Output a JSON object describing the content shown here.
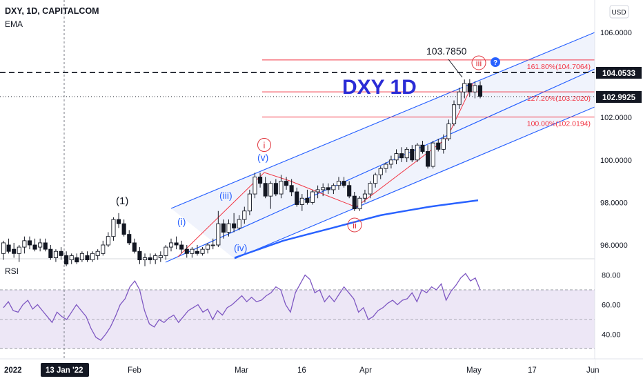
{
  "header": {
    "symbol_line": "DXY, 1D, CAPITALCOM",
    "indicator": "EMA",
    "currency": "USD"
  },
  "rsi_pane": {
    "label": "RSI",
    "ticks": [
      "80.00",
      "60.00",
      "40.00"
    ]
  },
  "price_axis": {
    "ticks": [
      "106.0000",
      "104.0000",
      "102.0000",
      "100.0000",
      "98.0000",
      "96.0000"
    ]
  },
  "price_badges": {
    "dashed_level": "104.0533",
    "last_price": "102.9925"
  },
  "time_axis": {
    "labels": [
      "2022",
      "13 Jan '22",
      "Feb",
      "Mar",
      "16",
      "Apr",
      "May",
      "17",
      "Jun"
    ]
  },
  "annotations": {
    "watermark": "DXY 1D",
    "peak_label": "103.7850",
    "wave_1": "(1)",
    "wave_i_blue": "(i)",
    "wave_iii_blue": "(iii)",
    "wave_iv_blue": "(iv)",
    "wave_v_blue": "(v)",
    "wave_i_red": "i",
    "wave_ii_red": "ii",
    "wave_iii_red": "iii",
    "help_glyph": "?"
  },
  "fib_levels": [
    {
      "label": "161.80%(104.7064)",
      "value": 104.7064
    },
    {
      "label": "127.20%(103.2020)",
      "value": 103.202
    },
    {
      "label": "100.00%(102.0194)",
      "value": 102.0194
    }
  ],
  "colors": {
    "up": "#ffffff",
    "down": "#131722",
    "ema": "#2962ff",
    "channel": "#2962ff",
    "fib": "#f23645",
    "rsi": "#7e57c2",
    "wave_red": "#e0353d",
    "wave_blue": "#2962ff"
  },
  "chart_data": {
    "type": "candlestick",
    "title": "DXY, 1D, CAPITALCOM",
    "ylim": [
      95.0,
      107.0
    ],
    "candles": [
      {
        "o": 95.6,
        "h": 96.2,
        "l": 95.3,
        "c": 96.1
      },
      {
        "o": 96.0,
        "h": 96.3,
        "l": 95.6,
        "c": 95.7
      },
      {
        "o": 95.8,
        "h": 96.1,
        "l": 95.4,
        "c": 95.6
      },
      {
        "o": 95.6,
        "h": 96.0,
        "l": 95.2,
        "c": 95.9
      },
      {
        "o": 95.9,
        "h": 96.4,
        "l": 95.6,
        "c": 96.2
      },
      {
        "o": 96.2,
        "h": 96.4,
        "l": 95.8,
        "c": 96.0
      },
      {
        "o": 96.0,
        "h": 96.3,
        "l": 95.7,
        "c": 95.8
      },
      {
        "o": 95.9,
        "h": 96.3,
        "l": 95.7,
        "c": 96.1
      },
      {
        "o": 96.1,
        "h": 96.3,
        "l": 95.7,
        "c": 95.8
      },
      {
        "o": 95.8,
        "h": 96.0,
        "l": 95.3,
        "c": 95.4
      },
      {
        "o": 95.4,
        "h": 95.8,
        "l": 95.2,
        "c": 95.7
      },
      {
        "o": 95.7,
        "h": 95.9,
        "l": 95.3,
        "c": 95.5
      },
      {
        "o": 95.5,
        "h": 95.7,
        "l": 95.0,
        "c": 95.1
      },
      {
        "o": 95.3,
        "h": 95.6,
        "l": 95.1,
        "c": 95.5
      },
      {
        "o": 95.4,
        "h": 95.6,
        "l": 95.1,
        "c": 95.2
      },
      {
        "o": 95.3,
        "h": 95.7,
        "l": 95.2,
        "c": 95.6
      },
      {
        "o": 95.5,
        "h": 95.7,
        "l": 95.2,
        "c": 95.3
      },
      {
        "o": 95.3,
        "h": 95.7,
        "l": 95.2,
        "c": 95.6
      },
      {
        "o": 95.5,
        "h": 95.8,
        "l": 95.3,
        "c": 95.7
      },
      {
        "o": 95.6,
        "h": 96.2,
        "l": 95.5,
        "c": 96.0
      },
      {
        "o": 96.0,
        "h": 96.6,
        "l": 95.9,
        "c": 96.4
      },
      {
        "o": 96.4,
        "h": 97.3,
        "l": 96.2,
        "c": 97.2
      },
      {
        "o": 97.2,
        "h": 97.5,
        "l": 96.8,
        "c": 97.0
      },
      {
        "o": 97.0,
        "h": 97.2,
        "l": 96.4,
        "c": 96.5
      },
      {
        "o": 96.5,
        "h": 96.7,
        "l": 96.0,
        "c": 96.1
      },
      {
        "o": 96.1,
        "h": 96.3,
        "l": 95.6,
        "c": 95.7
      },
      {
        "o": 95.7,
        "h": 95.9,
        "l": 95.1,
        "c": 95.3
      },
      {
        "o": 95.3,
        "h": 95.6,
        "l": 95.0,
        "c": 95.4
      },
      {
        "o": 95.4,
        "h": 95.6,
        "l": 95.1,
        "c": 95.3
      },
      {
        "o": 95.3,
        "h": 95.6,
        "l": 95.1,
        "c": 95.5
      },
      {
        "o": 95.4,
        "h": 95.7,
        "l": 95.2,
        "c": 95.5
      },
      {
        "o": 95.5,
        "h": 96.0,
        "l": 95.3,
        "c": 95.9
      },
      {
        "o": 95.9,
        "h": 96.3,
        "l": 95.7,
        "c": 96.1
      },
      {
        "o": 96.1,
        "h": 96.4,
        "l": 95.8,
        "c": 96.0
      },
      {
        "o": 96.0,
        "h": 96.2,
        "l": 95.6,
        "c": 95.8
      },
      {
        "o": 95.8,
        "h": 96.0,
        "l": 95.4,
        "c": 95.6
      },
      {
        "o": 95.6,
        "h": 95.9,
        "l": 95.4,
        "c": 95.8
      },
      {
        "o": 95.7,
        "h": 96.0,
        "l": 95.5,
        "c": 95.6
      },
      {
        "o": 95.6,
        "h": 95.9,
        "l": 95.5,
        "c": 95.8
      },
      {
        "o": 95.8,
        "h": 96.1,
        "l": 95.6,
        "c": 96.0
      },
      {
        "o": 96.0,
        "h": 96.3,
        "l": 95.8,
        "c": 96.0
      },
      {
        "o": 96.0,
        "h": 97.6,
        "l": 95.9,
        "c": 97.0
      },
      {
        "o": 97.0,
        "h": 97.2,
        "l": 96.3,
        "c": 96.6
      },
      {
        "o": 96.6,
        "h": 97.2,
        "l": 96.4,
        "c": 97.0
      },
      {
        "o": 97.0,
        "h": 97.5,
        "l": 96.6,
        "c": 96.8
      },
      {
        "o": 96.8,
        "h": 97.4,
        "l": 96.7,
        "c": 97.2
      },
      {
        "o": 97.2,
        "h": 97.8,
        "l": 97.0,
        "c": 97.6
      },
      {
        "o": 97.6,
        "h": 98.6,
        "l": 97.4,
        "c": 98.4
      },
      {
        "o": 98.4,
        "h": 99.4,
        "l": 98.2,
        "c": 99.2
      },
      {
        "o": 99.2,
        "h": 99.4,
        "l": 98.7,
        "c": 98.9
      },
      {
        "o": 98.9,
        "h": 99.2,
        "l": 98.2,
        "c": 98.3
      },
      {
        "o": 98.3,
        "h": 99.0,
        "l": 97.7,
        "c": 98.9
      },
      {
        "o": 98.9,
        "h": 99.1,
        "l": 98.3,
        "c": 98.4
      },
      {
        "o": 98.4,
        "h": 99.3,
        "l": 98.2,
        "c": 99.0
      },
      {
        "o": 99.0,
        "h": 99.2,
        "l": 98.6,
        "c": 98.8
      },
      {
        "o": 98.8,
        "h": 99.1,
        "l": 98.3,
        "c": 98.5
      },
      {
        "o": 98.5,
        "h": 98.7,
        "l": 97.8,
        "c": 97.9
      },
      {
        "o": 97.9,
        "h": 98.4,
        "l": 97.6,
        "c": 98.2
      },
      {
        "o": 98.2,
        "h": 98.6,
        "l": 97.9,
        "c": 98.0
      },
      {
        "o": 98.0,
        "h": 98.6,
        "l": 97.9,
        "c": 98.5
      },
      {
        "o": 98.5,
        "h": 98.8,
        "l": 98.2,
        "c": 98.6
      },
      {
        "o": 98.6,
        "h": 98.9,
        "l": 98.3,
        "c": 98.7
      },
      {
        "o": 98.7,
        "h": 98.9,
        "l": 98.4,
        "c": 98.6
      },
      {
        "o": 98.6,
        "h": 98.9,
        "l": 98.4,
        "c": 98.8
      },
      {
        "o": 98.8,
        "h": 99.2,
        "l": 98.6,
        "c": 99.0
      },
      {
        "o": 99.0,
        "h": 99.2,
        "l": 98.7,
        "c": 98.8
      },
      {
        "o": 98.8,
        "h": 99.0,
        "l": 98.2,
        "c": 98.3
      },
      {
        "o": 98.3,
        "h": 98.5,
        "l": 97.6,
        "c": 97.7
      },
      {
        "o": 97.7,
        "h": 98.3,
        "l": 97.6,
        "c": 98.2
      },
      {
        "o": 98.2,
        "h": 98.6,
        "l": 98.0,
        "c": 98.4
      },
      {
        "o": 98.4,
        "h": 99.0,
        "l": 98.2,
        "c": 98.9
      },
      {
        "o": 98.9,
        "h": 99.4,
        "l": 98.7,
        "c": 99.3
      },
      {
        "o": 99.3,
        "h": 99.7,
        "l": 99.1,
        "c": 99.6
      },
      {
        "o": 99.6,
        "h": 99.9,
        "l": 99.4,
        "c": 99.8
      },
      {
        "o": 99.8,
        "h": 100.2,
        "l": 99.6,
        "c": 100.0
      },
      {
        "o": 100.0,
        "h": 100.5,
        "l": 99.8,
        "c": 100.3
      },
      {
        "o": 100.3,
        "h": 100.6,
        "l": 99.9,
        "c": 100.1
      },
      {
        "o": 100.1,
        "h": 100.6,
        "l": 99.9,
        "c": 100.5
      },
      {
        "o": 100.5,
        "h": 100.7,
        "l": 99.9,
        "c": 100.0
      },
      {
        "o": 100.0,
        "h": 100.8,
        "l": 99.9,
        "c": 100.7
      },
      {
        "o": 100.7,
        "h": 100.9,
        "l": 100.3,
        "c": 100.4
      },
      {
        "o": 100.4,
        "h": 100.7,
        "l": 99.6,
        "c": 99.7
      },
      {
        "o": 99.7,
        "h": 100.9,
        "l": 99.6,
        "c": 100.8
      },
      {
        "o": 100.8,
        "h": 101.0,
        "l": 100.4,
        "c": 100.5
      },
      {
        "o": 100.5,
        "h": 101.2,
        "l": 100.3,
        "c": 101.0
      },
      {
        "o": 101.0,
        "h": 101.9,
        "l": 100.9,
        "c": 101.7
      },
      {
        "o": 101.7,
        "h": 102.8,
        "l": 101.6,
        "c": 102.6
      },
      {
        "o": 102.6,
        "h": 103.4,
        "l": 102.4,
        "c": 103.2
      },
      {
        "o": 103.2,
        "h": 103.785,
        "l": 102.9,
        "c": 103.6
      },
      {
        "o": 103.6,
        "h": 103.8,
        "l": 103.0,
        "c": 103.2
      },
      {
        "o": 103.2,
        "h": 103.7,
        "l": 102.9,
        "c": 103.5
      },
      {
        "o": 103.5,
        "h": 103.7,
        "l": 102.9,
        "c": 102.9925
      }
    ],
    "ema": [
      95.4,
      95.8,
      96.2,
      96.5,
      96.8,
      97.1,
      97.4,
      97.6,
      97.8,
      97.95,
      98.1
    ],
    "rsi": [
      58,
      62,
      56,
      55,
      60,
      63,
      57,
      60,
      56,
      52,
      48,
      55,
      52,
      50,
      55,
      60,
      56,
      52,
      44,
      38,
      36,
      40,
      45,
      52,
      60,
      64,
      72,
      76,
      70,
      56,
      47,
      45,
      50,
      48,
      51,
      53,
      48,
      52,
      56,
      58,
      60,
      55,
      57,
      50,
      56,
      53,
      58,
      60,
      63,
      66,
      62,
      65,
      62,
      63,
      66,
      68,
      72,
      70,
      60,
      55,
      68,
      74,
      80,
      77,
      68,
      70,
      62,
      66,
      62,
      67,
      72,
      68,
      64,
      55,
      58,
      50,
      52,
      56,
      58,
      61,
      63,
      60,
      63,
      64,
      68,
      62,
      70,
      68,
      72,
      70,
      74,
      63,
      69,
      73,
      78,
      81,
      76,
      78,
      70
    ]
  }
}
